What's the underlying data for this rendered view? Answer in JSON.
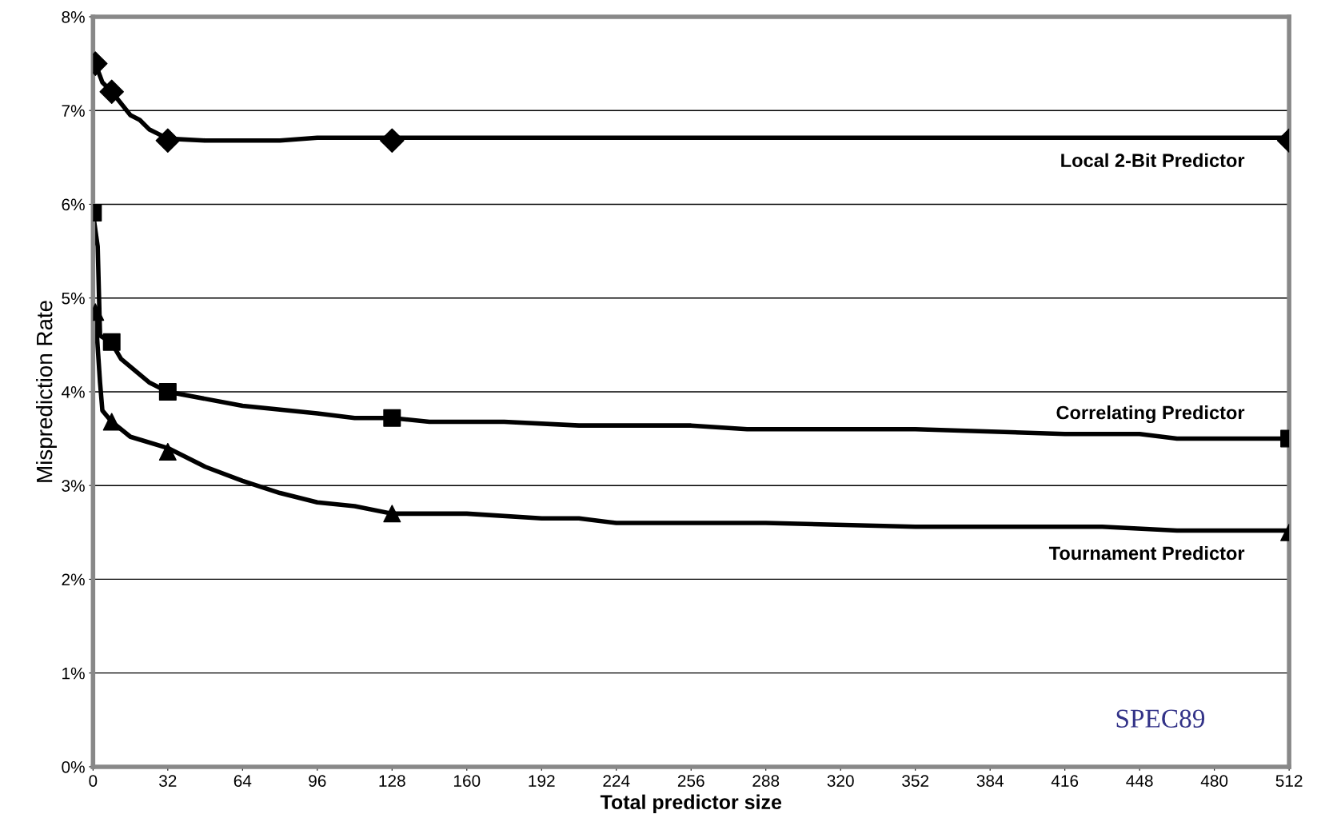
{
  "chart_data": {
    "type": "line",
    "xlabel": "Total predictor size",
    "ylabel": "Misprediction Rate",
    "xlim": [
      0,
      512
    ],
    "xticks": [
      0,
      32,
      64,
      96,
      128,
      160,
      192,
      224,
      256,
      288,
      320,
      352,
      384,
      416,
      448,
      480,
      512
    ],
    "ylim": [
      0,
      8
    ],
    "yticks": [
      {
        "value": 0,
        "label": "0%"
      },
      {
        "value": 1,
        "label": "1%"
      },
      {
        "value": 2,
        "label": "2%"
      },
      {
        "value": 3,
        "label": "3%"
      },
      {
        "value": 4,
        "label": "4%"
      },
      {
        "value": 5,
        "label": "5%"
      },
      {
        "value": 6,
        "label": "6%"
      },
      {
        "value": 7,
        "label": "7%"
      },
      {
        "value": 8,
        "label": "8%"
      }
    ],
    "grid": "y",
    "legend": false,
    "line_style": "solid",
    "series": [
      {
        "name": "Local 2-Bit Predictor",
        "color": "#000000",
        "marker": "none",
        "x": [
          1,
          4,
          8,
          16,
          20,
          24,
          32,
          48,
          80,
          96,
          128,
          512
        ],
        "values": [
          7.5,
          7.3,
          7.2,
          6.95,
          6.9,
          6.8,
          6.7,
          6.68,
          6.68,
          6.71,
          6.71,
          6.71
        ]
      },
      {
        "name": "Correlating Predictor",
        "color": "#000000",
        "marker": "none",
        "x": [
          0,
          2,
          3,
          8,
          12,
          24,
          32,
          64,
          96,
          112,
          128,
          144,
          176,
          208,
          256,
          280,
          352,
          416,
          448,
          464,
          512
        ],
        "values": [
          5.9,
          5.55,
          4.6,
          4.52,
          4.35,
          4.1,
          4.0,
          3.85,
          3.77,
          3.72,
          3.72,
          3.68,
          3.68,
          3.64,
          3.64,
          3.6,
          3.6,
          3.55,
          3.55,
          3.5,
          3.5
        ]
      },
      {
        "name": "Tournament Predictor",
        "color": "#000000",
        "marker": "none",
        "x": [
          1,
          3,
          4,
          8,
          16,
          32,
          48,
          64,
          80,
          96,
          112,
          128,
          160,
          192,
          208,
          224,
          288,
          352,
          432,
          464,
          512
        ],
        "values": [
          4.85,
          4.1,
          3.8,
          3.68,
          3.52,
          3.4,
          3.2,
          3.05,
          2.92,
          2.82,
          2.78,
          2.7,
          2.7,
          2.65,
          2.65,
          2.6,
          2.6,
          2.56,
          2.56,
          2.52,
          2.52
        ]
      },
      {
        "type": "scatter",
        "color": "#000000",
        "marker": "diamond",
        "x": [
          1,
          8,
          32,
          128,
          512
        ],
        "values": [
          7.5,
          7.2,
          6.68,
          6.68,
          6.68
        ]
      },
      {
        "type": "scatter",
        "color": "#000000",
        "marker": "square",
        "x": [
          0,
          8,
          32,
          128,
          512
        ],
        "values": [
          5.91,
          4.53,
          4.0,
          3.72,
          3.5
        ]
      },
      {
        "type": "scatter",
        "color": "#000000",
        "marker": "triangle",
        "x": [
          1,
          8,
          32,
          128,
          512
        ],
        "values": [
          4.85,
          3.68,
          3.36,
          2.7,
          2.5
        ]
      }
    ],
    "annotations": [
      "SPEC89"
    ]
  }
}
